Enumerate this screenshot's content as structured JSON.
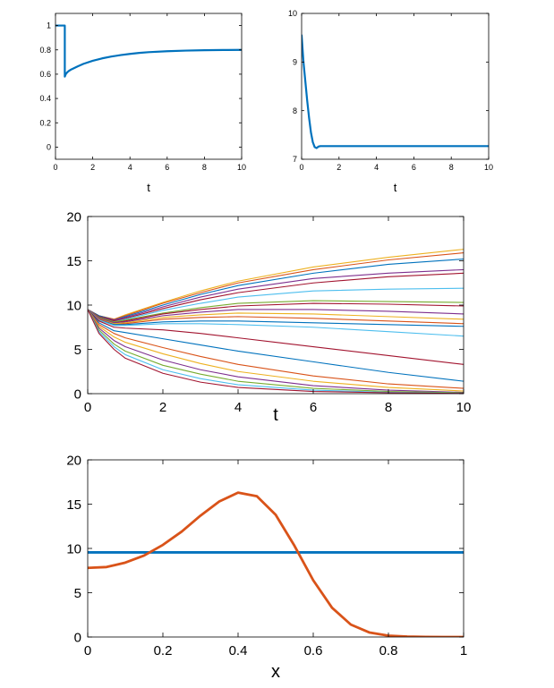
{
  "chart_data": [
    {
      "type": "line",
      "xlabel": "t",
      "ylabel": "",
      "xlim": [
        0,
        10
      ],
      "ylim": [
        -0.1,
        1.1
      ],
      "xticks": [
        "0",
        "2",
        "4",
        "6",
        "8",
        "10"
      ],
      "yticks": [
        "0",
        "0.2",
        "0.4",
        "0.6",
        "0.8",
        "1"
      ],
      "grid": false,
      "series": [
        {
          "color": "#0072BD",
          "x": [
            0,
            0.5,
            0.5,
            0.55,
            0.6,
            0.7,
            0.8,
            1.0,
            1.2,
            1.5,
            2.0,
            2.5,
            3.0,
            3.5,
            4.0,
            4.5,
            5.0,
            6.0,
            7.0,
            8.0,
            9.0,
            10.0
          ],
          "y": [
            1.0,
            1.0,
            0.58,
            0.6,
            0.61,
            0.625,
            0.635,
            0.65,
            0.665,
            0.685,
            0.71,
            0.73,
            0.745,
            0.757,
            0.767,
            0.775,
            0.781,
            0.789,
            0.794,
            0.797,
            0.799,
            0.8
          ]
        }
      ]
    },
    {
      "type": "line",
      "xlabel": "t",
      "ylabel": "",
      "xlim": [
        0,
        10
      ],
      "ylim": [
        7,
        10
      ],
      "xticks": [
        "0",
        "2",
        "4",
        "6",
        "8",
        "10"
      ],
      "yticks": [
        "7",
        "8",
        "9",
        "10"
      ],
      "grid": false,
      "series": [
        {
          "color": "#0072BD",
          "x": [
            0,
            0.1,
            0.2,
            0.3,
            0.4,
            0.5,
            0.6,
            0.7,
            0.8,
            0.9,
            1.0,
            1.2,
            2.0,
            4.0,
            6.0,
            8.0,
            10.0
          ],
          "y": [
            9.55,
            9.0,
            8.6,
            8.2,
            7.85,
            7.55,
            7.35,
            7.25,
            7.23,
            7.26,
            7.27,
            7.27,
            7.27,
            7.27,
            7.27,
            7.27,
            7.27
          ]
        }
      ]
    },
    {
      "type": "line",
      "xlabel": "t",
      "ylabel": "",
      "xlim": [
        0,
        10
      ],
      "ylim": [
        0,
        20
      ],
      "xticks": [
        "0",
        "2",
        "4",
        "6",
        "8",
        "10"
      ],
      "yticks": [
        "0",
        "5",
        "10",
        "15",
        "20"
      ],
      "grid": false,
      "x": [
        0,
        0.3,
        0.7,
        1,
        2,
        3,
        4,
        6,
        8,
        10
      ],
      "series": [
        {
          "color": "#EDB120",
          "values": [
            9.5,
            8.8,
            8.4,
            8.9,
            10.3,
            11.6,
            12.7,
            14.3,
            15.4,
            16.3
          ]
        },
        {
          "color": "#D95319",
          "values": [
            9.5,
            8.8,
            8.4,
            8.8,
            10.2,
            11.4,
            12.5,
            14.0,
            15.1,
            15.9
          ]
        },
        {
          "color": "#0072BD",
          "values": [
            9.5,
            8.8,
            8.3,
            8.7,
            10.0,
            11.2,
            12.2,
            13.6,
            14.6,
            15.2
          ]
        },
        {
          "color": "#7E2F8E",
          "values": [
            9.5,
            8.7,
            8.3,
            8.6,
            9.8,
            10.9,
            11.8,
            13.0,
            13.6,
            14.0
          ]
        },
        {
          "color": "#A2142F",
          "values": [
            9.5,
            8.7,
            8.2,
            8.5,
            9.6,
            10.6,
            11.4,
            12.5,
            13.2,
            13.6
          ]
        },
        {
          "color": "#4DBEEE",
          "values": [
            9.5,
            8.6,
            8.1,
            8.4,
            9.4,
            10.2,
            10.9,
            11.6,
            11.8,
            11.9
          ]
        },
        {
          "color": "#77AC30",
          "values": [
            9.5,
            8.6,
            8.1,
            8.3,
            9.1,
            9.7,
            10.2,
            10.5,
            10.4,
            10.3
          ]
        },
        {
          "color": "#A2142F",
          "values": [
            9.5,
            8.5,
            8.0,
            8.2,
            9.0,
            9.5,
            9.9,
            10.2,
            10.1,
            9.9
          ]
        },
        {
          "color": "#7E2F8E",
          "values": [
            9.5,
            8.5,
            8.0,
            8.1,
            8.8,
            9.2,
            9.5,
            9.5,
            9.3,
            9.0
          ]
        },
        {
          "color": "#EDB120",
          "values": [
            9.5,
            8.4,
            7.9,
            8.0,
            8.6,
            8.9,
            9.1,
            9.0,
            8.7,
            8.4
          ]
        },
        {
          "color": "#D95319",
          "values": [
            9.5,
            8.4,
            7.8,
            7.9,
            8.4,
            8.6,
            8.7,
            8.5,
            8.2,
            7.9
          ]
        },
        {
          "color": "#0072BD",
          "values": [
            9.5,
            8.3,
            7.8,
            7.8,
            8.1,
            8.2,
            8.2,
            8.0,
            7.8,
            7.6
          ]
        },
        {
          "color": "#4DBEEE",
          "values": [
            9.5,
            8.3,
            7.7,
            7.7,
            7.9,
            7.9,
            7.8,
            7.5,
            7.0,
            6.5
          ]
        },
        {
          "color": "#A2142F",
          "values": [
            9.5,
            8.2,
            7.5,
            7.4,
            7.2,
            6.8,
            6.3,
            5.3,
            4.3,
            3.3
          ]
        },
        {
          "color": "#0072BD",
          "values": [
            9.5,
            8.0,
            7.1,
            6.9,
            6.2,
            5.5,
            4.8,
            3.6,
            2.4,
            1.4
          ]
        },
        {
          "color": "#D95319",
          "values": [
            9.5,
            7.8,
            6.8,
            6.3,
            5.2,
            4.2,
            3.3,
            2.0,
            1.1,
            0.6
          ]
        },
        {
          "color": "#EDB120",
          "values": [
            9.5,
            7.6,
            6.4,
            5.8,
            4.5,
            3.4,
            2.5,
            1.4,
            0.7,
            0.3
          ]
        },
        {
          "color": "#7E2F8E",
          "values": [
            9.5,
            7.4,
            6.0,
            5.3,
            3.8,
            2.7,
            1.9,
            0.9,
            0.4,
            0.15
          ]
        },
        {
          "color": "#77AC30",
          "values": [
            9.5,
            7.2,
            5.6,
            4.8,
            3.2,
            2.2,
            1.4,
            0.6,
            0.25,
            0.1
          ]
        },
        {
          "color": "#4DBEEE",
          "values": [
            9.5,
            7.0,
            5.3,
            4.4,
            2.7,
            1.7,
            1.0,
            0.4,
            0.15,
            0.05
          ]
        },
        {
          "color": "#A2142F",
          "values": [
            9.5,
            6.8,
            5.0,
            4.0,
            2.3,
            1.3,
            0.7,
            0.25,
            0.1,
            0.03
          ]
        }
      ]
    },
    {
      "type": "line",
      "xlabel": "x",
      "ylabel": "",
      "xlim": [
        0,
        1
      ],
      "ylim": [
        0,
        20
      ],
      "xticks": [
        "0",
        "0.2",
        "0.4",
        "0.6",
        "0.8",
        "1"
      ],
      "yticks": [
        "0",
        "5",
        "10",
        "15",
        "20"
      ],
      "grid": false,
      "series": [
        {
          "color": "#0072BD",
          "x": [
            0,
            1
          ],
          "y": [
            9.55,
            9.55
          ]
        },
        {
          "color": "#D95319",
          "x": [
            0,
            0.05,
            0.1,
            0.15,
            0.2,
            0.25,
            0.3,
            0.35,
            0.4,
            0.45,
            0.5,
            0.55,
            0.6,
            0.65,
            0.7,
            0.75,
            0.8,
            0.85,
            0.9,
            0.95,
            1.0
          ],
          "y": [
            7.8,
            7.9,
            8.4,
            9.2,
            10.4,
            11.9,
            13.7,
            15.3,
            16.3,
            15.9,
            13.8,
            10.3,
            6.4,
            3.3,
            1.4,
            0.5,
            0.15,
            0.05,
            0.01,
            0.0,
            0.0
          ]
        }
      ]
    }
  ]
}
